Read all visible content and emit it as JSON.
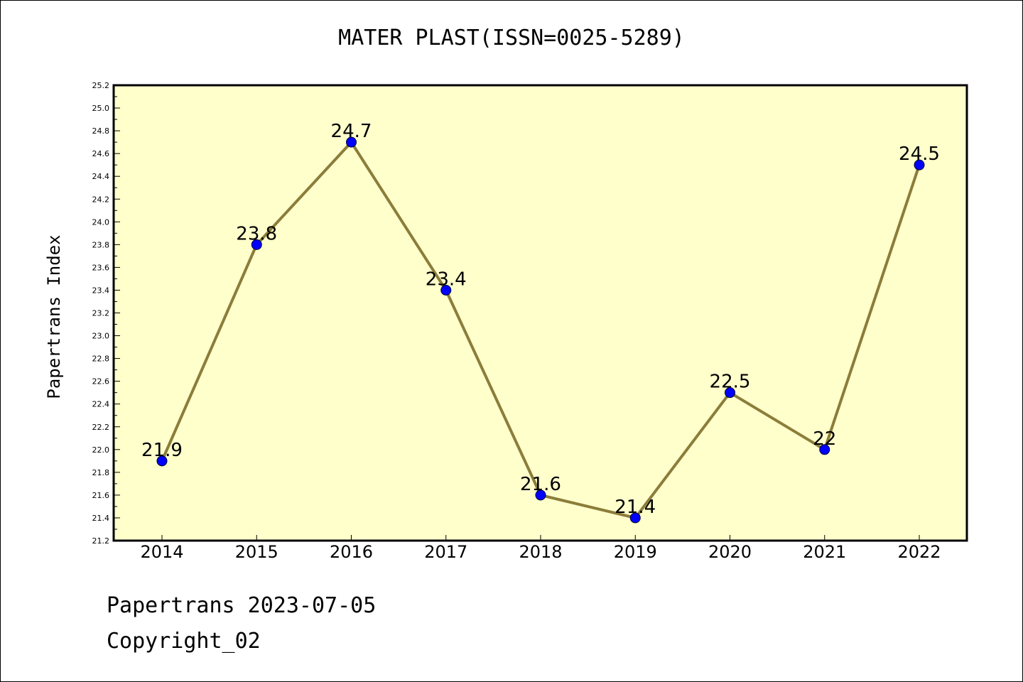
{
  "title": "MATER PLAST(ISSN=0025-5289)",
  "footer": {
    "date_line": "Papertrans 2023-07-05",
    "copyright_line": "Copyright_02"
  },
  "colors": {
    "plot_background": "#ffffcc",
    "line": "#8b7d3a",
    "marker": "#0000ff",
    "axes": "#000000"
  },
  "chart_data": {
    "type": "line",
    "title": "MATER PLAST(ISSN=0025-5289)",
    "xlabel": "",
    "ylabel": "Papertrans Index",
    "categories": [
      "2014",
      "2015",
      "2016",
      "2017",
      "2018",
      "2019",
      "2020",
      "2021",
      "2022"
    ],
    "series": [
      {
        "values": [
          21.9,
          23.8,
          24.7,
          23.4,
          21.6,
          21.4,
          22.5,
          22,
          24.5
        ],
        "data_labels": [
          "21.9",
          "23.8",
          "24.7",
          "23.4",
          "21.6",
          "21.4",
          "22.5",
          "22",
          "24.5"
        ]
      }
    ],
    "ylim": [
      21.2,
      25.2
    ],
    "yticks": [
      "21.2",
      "21.4",
      "21.6",
      "21.8",
      "22.0",
      "22.2",
      "22.4",
      "22.6",
      "22.8",
      "23.0",
      "23.2",
      "23.4",
      "23.6",
      "23.8",
      "24.0",
      "24.2",
      "24.4",
      "24.6",
      "24.8",
      "25.0",
      "25.2"
    ],
    "grid": false,
    "legend": "none"
  }
}
